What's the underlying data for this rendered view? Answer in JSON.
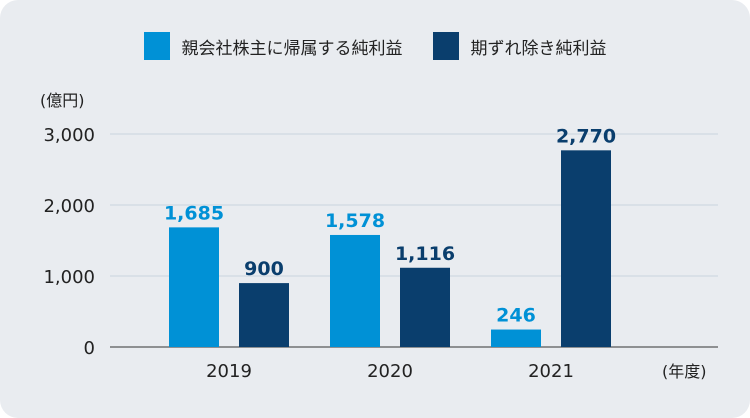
{
  "chart_data": {
    "type": "bar",
    "categories": [
      "2019",
      "2020",
      "2021"
    ],
    "series": [
      {
        "name": "親会社株主に帰属する純利益",
        "values": [
          1685,
          1578,
          246
        ],
        "labels": [
          "1,685",
          "1,578",
          "246"
        ],
        "color": "#0091d6"
      },
      {
        "name": "期ずれ除き純利益",
        "values": [
          900,
          1116,
          2770
        ],
        "labels": [
          "900",
          "1,116",
          "2,770"
        ],
        "color": "#0a3e6d"
      }
    ],
    "yunit": "(億円)",
    "xunit": "(年度)",
    "ylim": [
      0,
      3000
    ],
    "yticks": [
      0,
      1000,
      2000,
      3000
    ],
    "ytick_labels": [
      "0",
      "1,000",
      "2,000",
      "3,000"
    ],
    "grid": true,
    "legend": "top"
  }
}
